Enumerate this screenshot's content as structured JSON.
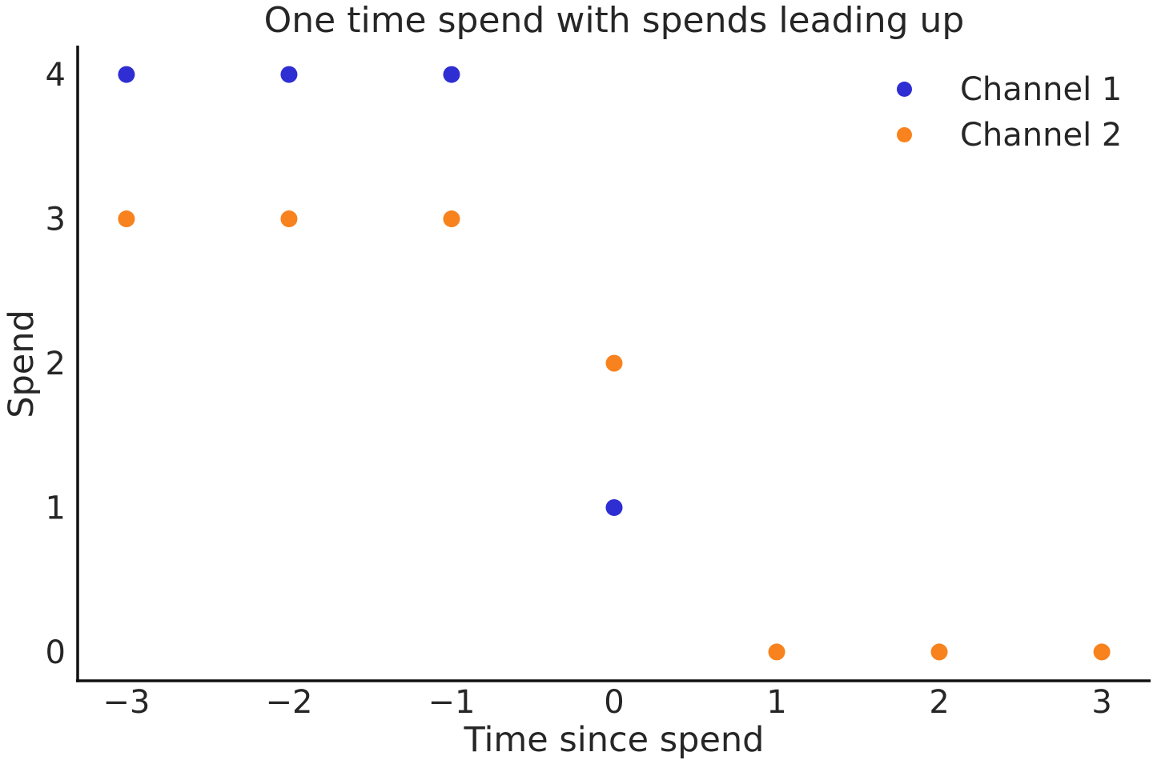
{
  "chart_data": {
    "type": "scatter",
    "title": "One time spend with spends leading up",
    "xlabel": "Time since spend",
    "ylabel": "Spend",
    "xlim": [
      -3.3,
      3.3
    ],
    "ylim": [
      -0.2,
      4.2
    ],
    "grid": false,
    "legend": {
      "position": "upper right",
      "entries": [
        "Channel 1",
        "Channel 2"
      ]
    },
    "xticks": [
      {
        "value": -3,
        "label": "−3"
      },
      {
        "value": -2,
        "label": "−2"
      },
      {
        "value": -1,
        "label": "−1"
      },
      {
        "value": 0,
        "label": "0"
      },
      {
        "value": 1,
        "label": "1"
      },
      {
        "value": 2,
        "label": "2"
      },
      {
        "value": 3,
        "label": "3"
      }
    ],
    "yticks": [
      {
        "value": 0,
        "label": "0"
      },
      {
        "value": 1,
        "label": "1"
      },
      {
        "value": 2,
        "label": "2"
      },
      {
        "value": 3,
        "label": "3"
      },
      {
        "value": 4,
        "label": "4"
      }
    ],
    "series": [
      {
        "name": "Channel 1",
        "color": "#2e2ed2",
        "marker": "circle",
        "points": [
          [
            -3,
            4
          ],
          [
            -2,
            4
          ],
          [
            -1,
            4
          ],
          [
            0,
            1
          ]
        ]
      },
      {
        "name": "Channel 2",
        "color": "#f8821d",
        "marker": "circle",
        "points": [
          [
            -3,
            3
          ],
          [
            -2,
            3
          ],
          [
            -1,
            3
          ],
          [
            0,
            2
          ],
          [
            1,
            0
          ],
          [
            2,
            0
          ],
          [
            3,
            0
          ]
        ]
      }
    ],
    "colors": {
      "axis": "#111111",
      "text": "#262626"
    }
  }
}
